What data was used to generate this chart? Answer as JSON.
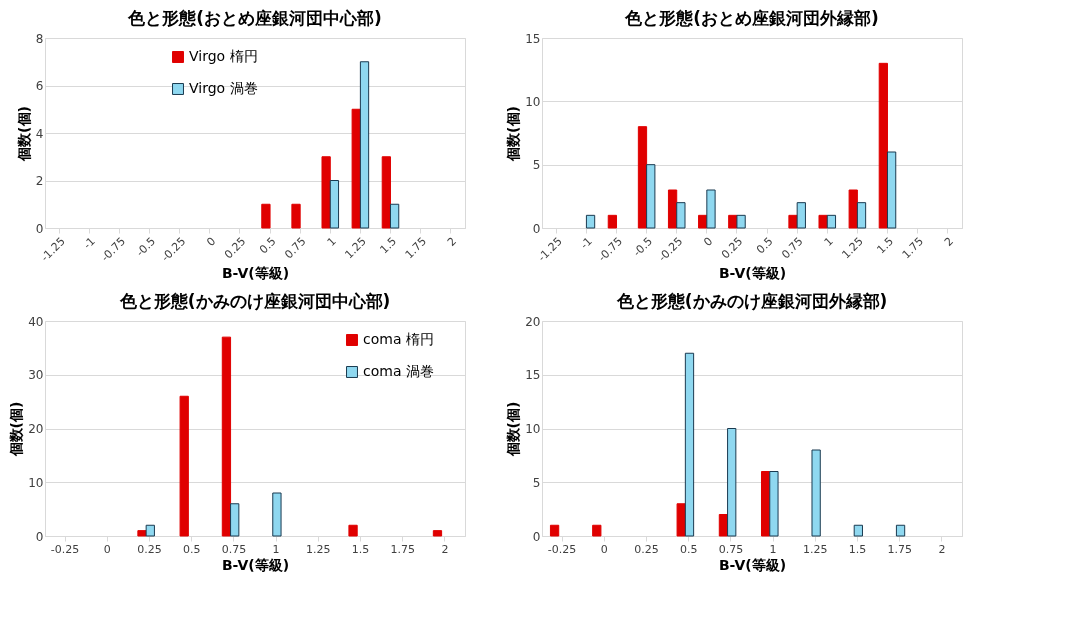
{
  "chart_data": [
    {
      "type": "bar",
      "title": "色と形態(おとめ座銀河団中心部)",
      "xlabel": "B-V(等級)",
      "ylabel": "個数(個)",
      "categories": [
        "-1.25",
        "-1",
        "-0.75",
        "-0.5",
        "-0.25",
        "0",
        "0.25",
        "0.5",
        "0.75",
        "1",
        "1.25",
        "1.5",
        "1.75",
        "2"
      ],
      "series": [
        {
          "name": "Virgo 楕円",
          "color": "#e00000",
          "values": [
            0,
            0,
            0,
            0,
            0,
            0,
            0,
            1,
            1,
            3,
            5,
            3,
            0,
            0
          ]
        },
        {
          "name": "Virgo 渦巻",
          "color": "#8fd8f0",
          "values": [
            0,
            0,
            0,
            0,
            0,
            0,
            0,
            0,
            0,
            2,
            7,
            1,
            0,
            0
          ]
        }
      ],
      "ylim": [
        0,
        8
      ],
      "yticks": [
        0,
        2,
        4,
        6,
        8
      ],
      "grid": "y",
      "legend": "top"
    },
    {
      "type": "bar",
      "title": "色と形態(おとめ座銀河団外縁部)",
      "xlabel": "B-V(等級)",
      "ylabel": "個数(個)",
      "categories": [
        "-1.25",
        "-1",
        "-0.75",
        "-0.5",
        "-0.25",
        "0",
        "0.25",
        "0.5",
        "0.75",
        "1",
        "1.25",
        "1.5",
        "1.75",
        "2"
      ],
      "series": [
        {
          "name": "Virgo 楕円",
          "color": "#e00000",
          "values": [
            0,
            0,
            1,
            8,
            3,
            1,
            1,
            0,
            1,
            1,
            3,
            13,
            0,
            0
          ]
        },
        {
          "name": "Virgo 渦巻",
          "color": "#8fd8f0",
          "values": [
            0,
            1,
            0,
            5,
            2,
            3,
            1,
            0,
            2,
            1,
            2,
            6,
            0,
            0
          ]
        }
      ],
      "ylim": [
        0,
        15
      ],
      "yticks": [
        0,
        5,
        10,
        15
      ],
      "grid": "y",
      "legend": "top"
    },
    {
      "type": "bar",
      "title": "色と形態(かみのけ座銀河団中心部)",
      "xlabel": "B-V(等級)",
      "ylabel": "個数(個)",
      "categories": [
        "-0.25",
        "0",
        "0.25",
        "0.5",
        "0.75",
        "1",
        "1.25",
        "1.5",
        "1.75",
        "2"
      ],
      "series": [
        {
          "name": "coma 楕円",
          "color": "#e00000",
          "values": [
            0,
            0,
            1,
            26,
            37,
            0,
            0,
            2,
            0,
            1
          ]
        },
        {
          "name": "coma 渦巻",
          "color": "#8fd8f0",
          "values": [
            0,
            0,
            2,
            0,
            6,
            8,
            0,
            0,
            0,
            0
          ]
        }
      ],
      "ylim": [
        0,
        40
      ],
      "yticks": [
        0,
        10,
        20,
        30,
        40
      ],
      "grid": "y",
      "legend": "top right"
    },
    {
      "type": "bar",
      "title": "色と形態(かみのけ座銀河団外縁部)",
      "xlabel": "B-V(等級)",
      "ylabel": "個数(個)",
      "categories": [
        "-0.25",
        "0",
        "0.25",
        "0.5",
        "0.75",
        "1",
        "1.25",
        "1.5",
        "1.75",
        "2"
      ],
      "series": [
        {
          "name": "coma 楕円",
          "color": "#e00000",
          "values": [
            1,
            1,
            0,
            3,
            2,
            6,
            0,
            0,
            0,
            0
          ]
        },
        {
          "name": "coma 渦巻",
          "color": "#8fd8f0",
          "values": [
            0,
            0,
            0,
            17,
            10,
            6,
            8,
            1,
            1,
            0
          ]
        }
      ],
      "ylim": [
        0,
        20
      ],
      "yticks": [
        0,
        5,
        10,
        15,
        20
      ],
      "grid": "y",
      "legend": "top right"
    }
  ]
}
